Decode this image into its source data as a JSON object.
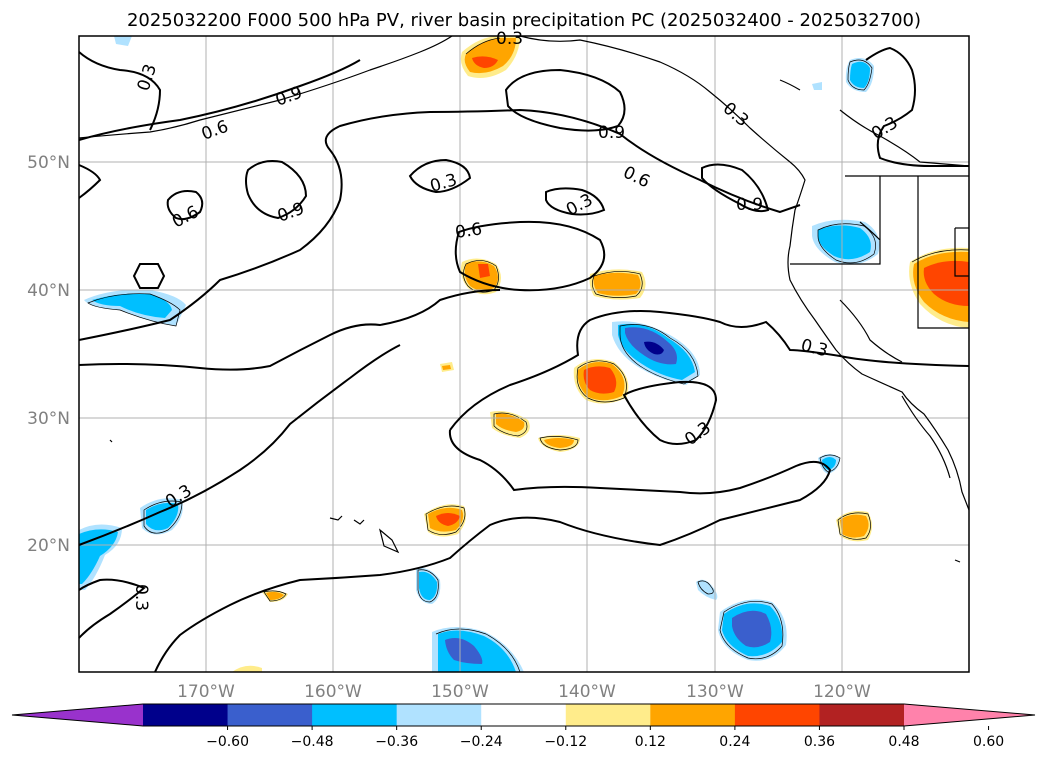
{
  "title": "2025032200 F000 500 hPa PV, river basin precipitation PC (2025032400 - 2025032700)",
  "lat_labels": [
    "50°N",
    "40°N",
    "30°N",
    "20°N"
  ],
  "lon_labels": [
    "170°W",
    "160°W",
    "150°W",
    "140°W",
    "130°W",
    "120°W"
  ],
  "colorbar": {
    "ticks": [
      "−0.60",
      "−0.48",
      "−0.36",
      "−0.24",
      "−0.12",
      "0.12",
      "0.24",
      "0.36",
      "0.48",
      "0.60"
    ],
    "colors": [
      "#9932cc",
      "#00008b",
      "#3a5fcd",
      "#00bfff",
      "#b0e2ff",
      "#ffffff",
      "#ffec8b",
      "#ffa500",
      "#ff4500",
      "#b22222",
      "#ff82ab"
    ]
  },
  "contour_labels": [
    "0.3",
    "0.6",
    "0.9"
  ],
  "colors": {
    "grid": "#b0b0b0",
    "contour": "#000000",
    "coast": "#000000",
    "tick_label": "#808080"
  },
  "map_extent": {
    "lon": [
      -180,
      -110
    ],
    "lat": [
      10,
      60
    ]
  }
}
